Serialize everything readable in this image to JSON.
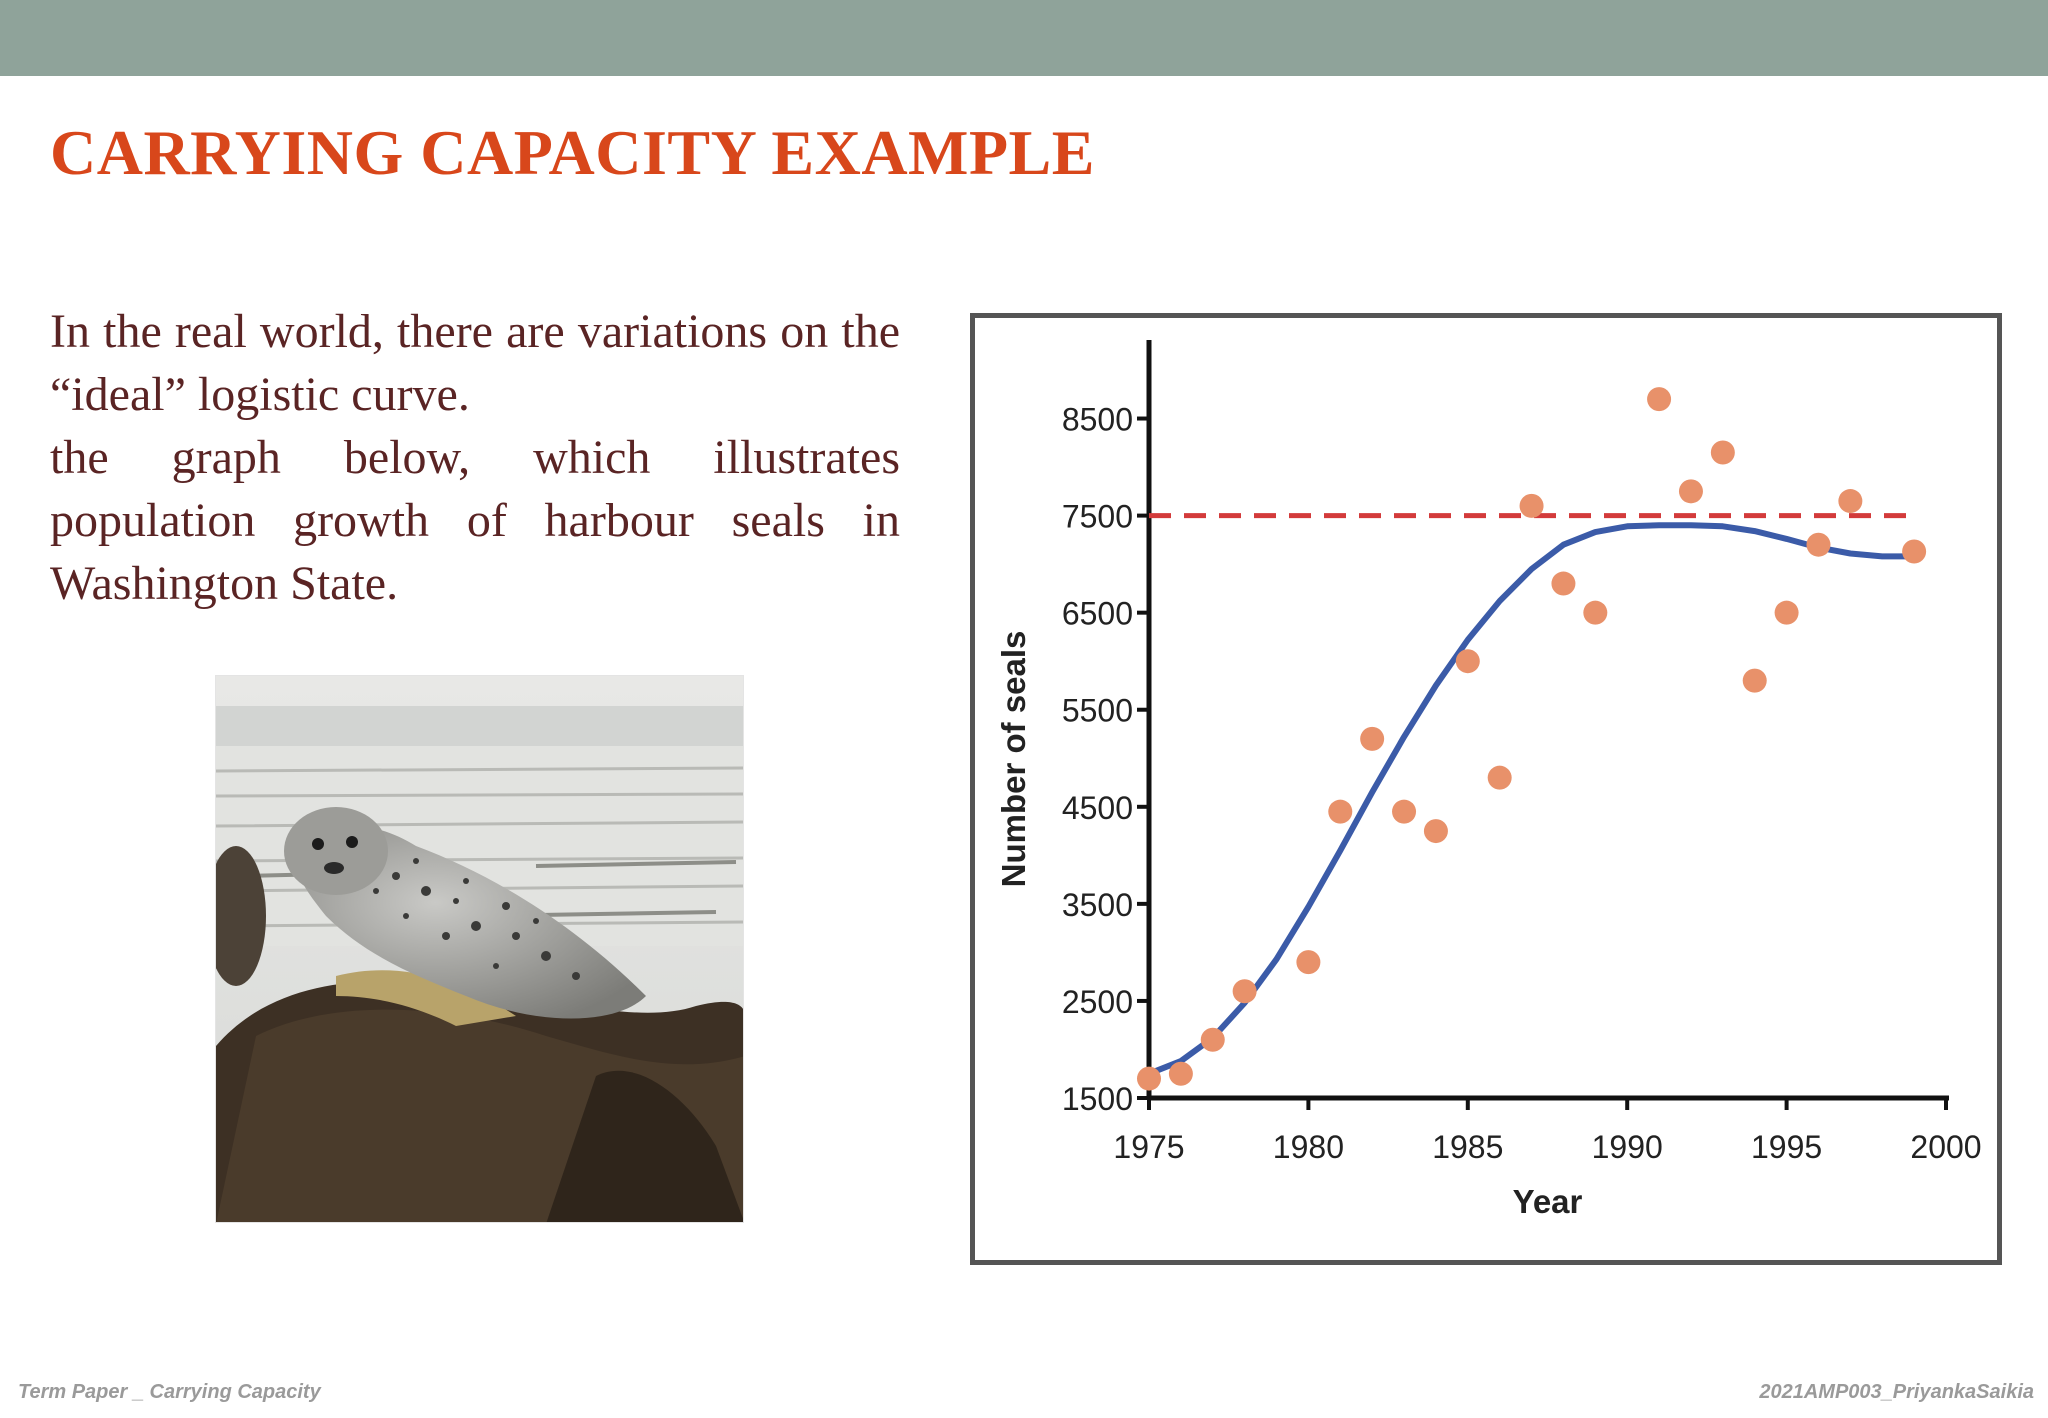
{
  "slide": {
    "title": "CARRYING CAPACITY EXAMPLE",
    "paragraph_1": "In the real world, there are variations on the “ideal” logistic curve.",
    "paragraph_2": "the graph below, which illustrates population growth of harbour seals in Washington State."
  },
  "footer": {
    "left": "Term Paper _ Carrying Capacity",
    "right": "2021AMP003_PriyankaSaikia"
  },
  "colors": {
    "title": "#d8471b",
    "body_text": "#5a2424",
    "top_bar": "#8fa39a",
    "scatter_points": "#e8916a",
    "logistic_curve": "#3b5ba8",
    "carrying_capacity_line": "#d33a3a"
  },
  "photo": {
    "icon": "harbour-seal-photo"
  },
  "chart_data": {
    "type": "scatter",
    "title": "",
    "xlabel": "Year",
    "ylabel": "Number of seals",
    "xlim": [
      1975,
      2000
    ],
    "ylim": [
      1500,
      9000
    ],
    "x_ticks": [
      "1975",
      "1980",
      "1985",
      "1990",
      "1995",
      "2000"
    ],
    "y_ticks": [
      "1500",
      "2500",
      "3500",
      "4500",
      "5500",
      "6500",
      "7500",
      "8500"
    ],
    "grid": false,
    "legend": "none",
    "series": [
      {
        "kind": "scatter",
        "x": [
          1975,
          1976,
          1977,
          1978,
          1980,
          1981,
          1982,
          1983,
          1984,
          1985,
          1986,
          1987,
          1988,
          1989,
          1991,
          1992,
          1993,
          1994,
          1995,
          1996,
          1997,
          1999
        ],
        "y": [
          1700,
          1750,
          2100,
          2600,
          2900,
          4450,
          5200,
          4450,
          4250,
          6000,
          4800,
          7600,
          6800,
          6500,
          8700,
          7750,
          8150,
          5800,
          6500,
          7200,
          7650,
          7130
        ]
      },
      {
        "kind": "line",
        "x": [
          1975,
          1976,
          1977,
          1978,
          1979,
          1980,
          1981,
          1982,
          1983,
          1984,
          1985,
          1986,
          1987,
          1988,
          1989,
          1990,
          1991,
          1992,
          1993,
          1994,
          1995,
          1996,
          1997,
          1998,
          1999
        ],
        "y": [
          1750,
          1880,
          2120,
          2480,
          2930,
          3470,
          4050,
          4650,
          5220,
          5750,
          6220,
          6620,
          6950,
          7200,
          7330,
          7390,
          7400,
          7400,
          7390,
          7340,
          7260,
          7170,
          7110,
          7080,
          7080
        ]
      },
      {
        "kind": "dashed-line",
        "x": [
          1975,
          1999
        ],
        "y": [
          7500,
          7500
        ]
      }
    ]
  }
}
